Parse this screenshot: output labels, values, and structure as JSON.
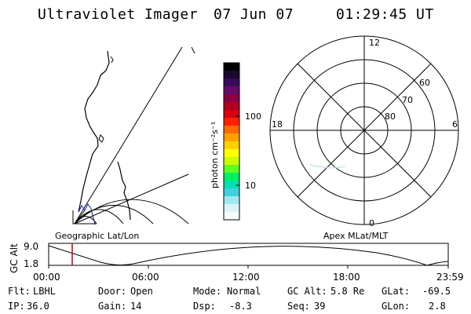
{
  "header": {
    "title": "Ultraviolet Imager",
    "date": "07 Jun 07",
    "time": "01:29:45 UT"
  },
  "geo_panel": {
    "label": "Geographic Lat/Lon"
  },
  "polar_panel": {
    "label": "Apex MLat/MLT",
    "hours": {
      "top": "12",
      "bottom": "0",
      "left": "18",
      "right": "6"
    },
    "lat_labels": [
      "80",
      "70",
      "60"
    ]
  },
  "colorbar": {
    "unit_label": "photon cm⁻²s⁻¹",
    "ticks": [
      "100",
      "10"
    ],
    "colors": [
      "#000000",
      "#1a0a2e",
      "#3b0a5a",
      "#6a0a6a",
      "#8a0040",
      "#b00020",
      "#d80010",
      "#ff2000",
      "#ff6a00",
      "#ffa000",
      "#ffd000",
      "#ffff00",
      "#c8ff00",
      "#60ff20",
      "#00f060",
      "#00e0b0",
      "#40d0e0",
      "#a0e8f0",
      "#d8f4f8",
      "#f4fbfc"
    ]
  },
  "timeseries": {
    "axis_label": "GC Alt",
    "y_ticks": [
      "9.0",
      "1.8"
    ],
    "x_ticks": [
      "00:00",
      "06:00",
      "12:00",
      "18:00",
      "23:59"
    ]
  },
  "status": {
    "row1": [
      {
        "label": "Flt:",
        "value": "LBHL"
      },
      {
        "label": "Door:",
        "value": "Open"
      },
      {
        "label": "Mode:",
        "value": "Normal"
      },
      {
        "label": "GC Alt:",
        "value": "5.8 Re"
      },
      {
        "label": "GLat:",
        "value": "-69.5"
      }
    ],
    "row2": [
      {
        "label": "IP:",
        "value": "36.0"
      },
      {
        "label": "Gain:",
        "value": "14"
      },
      {
        "label": "Dsp:",
        "value": "-8.3"
      },
      {
        "label": "Seq:",
        "value": "39"
      },
      {
        "label": "GLon:",
        "value": "2.8"
      }
    ]
  },
  "colors": {
    "marker": "#cc0000",
    "foreground": "#000000",
    "background": "#ffffff"
  }
}
